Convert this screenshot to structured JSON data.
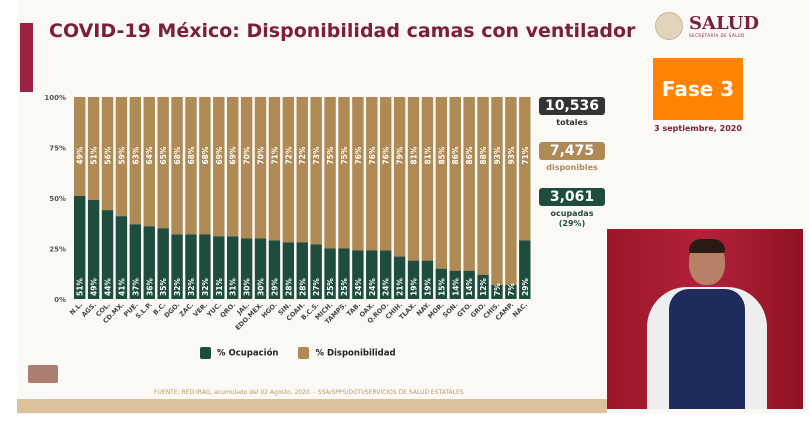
{
  "header": {
    "title": "COVID-19 México: Disponibilidad camas con ventilador"
  },
  "logo": {
    "name": "SALUD",
    "subtitle": "SECRETARÍA DE SALUD"
  },
  "phase": {
    "label": "Fase 3",
    "date": "3 septiembre, 2020",
    "color": "#ff8200"
  },
  "stats": {
    "total": {
      "value": "10,536",
      "label": "totales",
      "color": "#333333"
    },
    "available": {
      "value": "7,475",
      "label": "disponibles",
      "color": "#b08a55"
    },
    "occupied": {
      "value": "3,061",
      "label": "ocupadas",
      "pct": "(29%)",
      "color": "#1e4d3e"
    }
  },
  "chart_data": {
    "type": "bar",
    "stacked": true,
    "categories": [
      "N.L.",
      "AGS.",
      "COL.",
      "CD.MX.",
      "PUE.",
      "S.L.P.",
      "B.C.",
      "DGO.",
      "ZAC.",
      "VER.",
      "YUC.",
      "QRO.",
      "JAL.",
      "EDO.MEX.",
      "HGO.",
      "SIN.",
      "COAH.",
      "B.C.S.",
      "MICH.",
      "TAMPS.",
      "TAB.",
      "OAX.",
      "Q.ROO.",
      "CHIH.",
      "TLAX.",
      "NAY.",
      "MOR.",
      "SON.",
      "GTO.",
      "GRO.",
      "CHIS.",
      "CAMP.",
      "NAC."
    ],
    "series": [
      {
        "name": "% Ocupación",
        "color": "#1e4d3e",
        "values": [
          51,
          49,
          44,
          41,
          37,
          36,
          35,
          32,
          32,
          32,
          31,
          31,
          30,
          30,
          29,
          28,
          28,
          27,
          25,
          25,
          24,
          24,
          24,
          21,
          19,
          19,
          15,
          14,
          14,
          12,
          7,
          7,
          29
        ]
      },
      {
        "name": "% Disponibilidad",
        "color": "#b08a55",
        "values": [
          49,
          51,
          56,
          59,
          63,
          64,
          65,
          68,
          68,
          68,
          69,
          69,
          70,
          70,
          71,
          72,
          72,
          73,
          75,
          75,
          76,
          76,
          76,
          79,
          81,
          81,
          85,
          86,
          86,
          88,
          93,
          93,
          71
        ]
      }
    ],
    "yticks": [
      "0%",
      "25%",
      "50%",
      "75%",
      "100%"
    ],
    "ylim": [
      0,
      100
    ]
  },
  "footer": {
    "source": "FUENTE: RED IRAG, acumulado del 02 Agosto, 2020. -  SSA/SPPS/DGTI/SERVICIOS DE SALUD ESTATALES"
  }
}
